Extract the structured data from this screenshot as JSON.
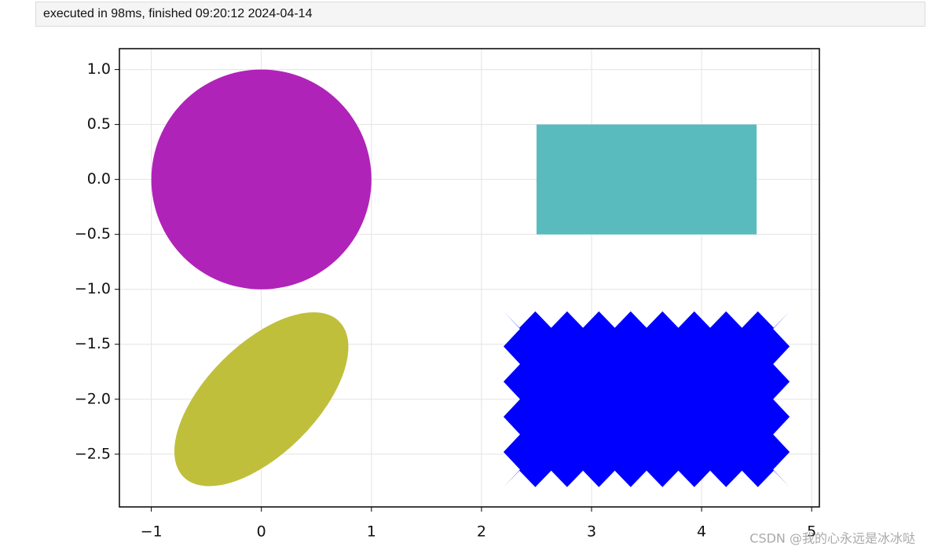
{
  "header": {
    "status": "executed in 98ms, finished 09:20:12 2024-04-14"
  },
  "chart_data": {
    "type": "patches",
    "xlim": [
      -1.29,
      5.07
    ],
    "ylim": [
      -2.98,
      1.19
    ],
    "xticks": [
      {
        "value": -1,
        "label": "−1"
      },
      0,
      1,
      2,
      3,
      4,
      5
    ],
    "yticks": [
      {
        "value": 1.0,
        "label": "1.0"
      },
      {
        "value": 0.5,
        "label": "0.5"
      },
      {
        "value": 0.0,
        "label": "0.0"
      },
      {
        "value": -0.5,
        "label": "−0.5"
      },
      {
        "value": -1.0,
        "label": "−1.0"
      },
      {
        "value": -1.5,
        "label": "−1.5"
      },
      {
        "value": -2.0,
        "label": "−2.0"
      },
      {
        "value": -2.5,
        "label": "−2.5"
      }
    ],
    "grid": true,
    "shapes": [
      {
        "type": "circle",
        "center": [
          0,
          0
        ],
        "radius": 1,
        "color": "#b023b8"
      },
      {
        "type": "rectangle",
        "xy": [
          2.5,
          -0.5
        ],
        "width": 2,
        "height": 1,
        "color": "#59bbbe"
      },
      {
        "type": "ellipse",
        "center": [
          0,
          -2
        ],
        "width": 2,
        "height": 1,
        "angle": 45,
        "color": "#c0bf3c"
      },
      {
        "type": "sawtooth",
        "xy": [
          2.5,
          -2.5
        ],
        "width": 2,
        "height": 1,
        "pad": 0.3,
        "color": "#0000ff"
      }
    ]
  },
  "watermark": "CSDN @我的心永远是冰冰哒"
}
